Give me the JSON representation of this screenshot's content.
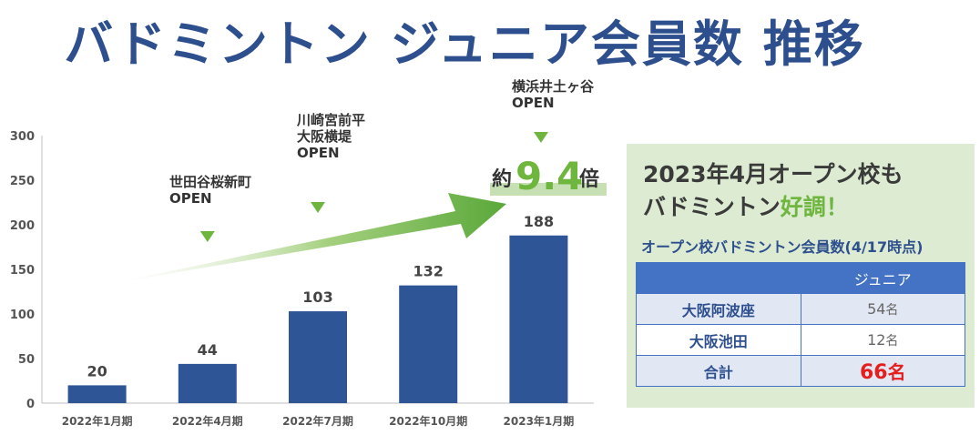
{
  "title": "バドミントン ジュニア会員数 推移",
  "chart_data": {
    "type": "bar",
    "categories": [
      "2022年1月期",
      "2022年4月期",
      "2022年7月期",
      "2022年10月期",
      "2023年1月期"
    ],
    "values": [
      20,
      44,
      103,
      132,
      188
    ],
    "data_labels": [
      "20",
      "44",
      "103",
      "132",
      "188"
    ],
    "ylim": [
      0,
      300
    ],
    "yticks": [
      "0",
      "50",
      "100",
      "150",
      "200",
      "250",
      "300"
    ],
    "bar_color": "#2e5596",
    "annotations": [
      {
        "category_index": 1,
        "lines": [
          "世田谷桜新町",
          "OPEN"
        ]
      },
      {
        "category_index": 2,
        "lines": [
          "川崎宮前平",
          "大阪横堤",
          "OPEN"
        ]
      },
      {
        "category_index": 4,
        "lines": [
          "横浜井土ヶ谷",
          "OPEN"
        ]
      }
    ],
    "growth_label": {
      "prefix": "約",
      "value": "9.4",
      "suffix": "倍"
    }
  },
  "panel": {
    "headline_line1": "2023年4月オープン校も",
    "headline_line2_pre": "バドミントン",
    "headline_line2_highlight": "好調！",
    "subtitle": "オープン校バドミントン会員数(4/17時点)",
    "column_header": "ジュニア",
    "rows": [
      {
        "name": "大阪阿波座",
        "value": "54",
        "unit": "名"
      },
      {
        "name": "大阪池田",
        "value": "12",
        "unit": "名"
      }
    ],
    "total": {
      "name": "合計",
      "value": "66",
      "unit": "名"
    }
  }
}
